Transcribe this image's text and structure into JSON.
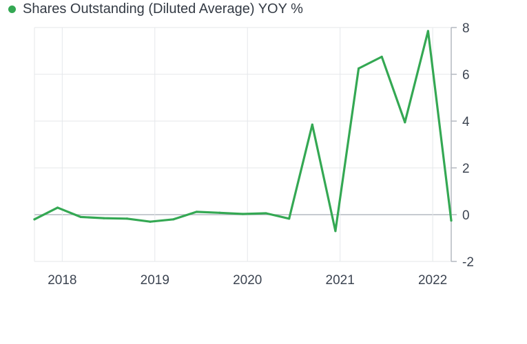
{
  "chart_data": {
    "type": "line",
    "legend": {
      "label": "Shares Outstanding (Diluted Average) YOY %",
      "color": "#34a853",
      "position": "top-left"
    },
    "series": [
      {
        "name": "Shares Outstanding (Diluted Average) YOY %",
        "color": "#34a853",
        "points": [
          {
            "x": 2017.7,
            "y": -0.2
          },
          {
            "x": 2017.95,
            "y": 0.3
          },
          {
            "x": 2018.2,
            "y": -0.1
          },
          {
            "x": 2018.45,
            "y": -0.15
          },
          {
            "x": 2018.7,
            "y": -0.17
          },
          {
            "x": 2018.95,
            "y": -0.3
          },
          {
            "x": 2019.2,
            "y": -0.2
          },
          {
            "x": 2019.45,
            "y": 0.12
          },
          {
            "x": 2019.7,
            "y": 0.08
          },
          {
            "x": 2019.95,
            "y": 0.03
          },
          {
            "x": 2020.2,
            "y": 0.06
          },
          {
            "x": 2020.45,
            "y": -0.17
          },
          {
            "x": 2020.7,
            "y": 3.85
          },
          {
            "x": 2020.95,
            "y": -0.7
          },
          {
            "x": 2021.2,
            "y": 6.25
          },
          {
            "x": 2021.45,
            "y": 6.75
          },
          {
            "x": 2021.7,
            "y": 3.95
          },
          {
            "x": 2021.95,
            "y": 7.85
          },
          {
            "x": 2022.2,
            "y": -0.25
          }
        ]
      }
    ],
    "x_ticks": [
      "2018",
      "2019",
      "2020",
      "2021",
      "2022"
    ],
    "y_ticks": [
      "8",
      "6",
      "4",
      "2",
      "0",
      "-2"
    ],
    "xlim": [
      2017.7,
      2022.2
    ],
    "ylim": [
      -2,
      8
    ],
    "axis_side_y": "right",
    "grid": true,
    "gridline_color": "#e4e7ea",
    "zero_line_color": "#b3b8c0"
  }
}
